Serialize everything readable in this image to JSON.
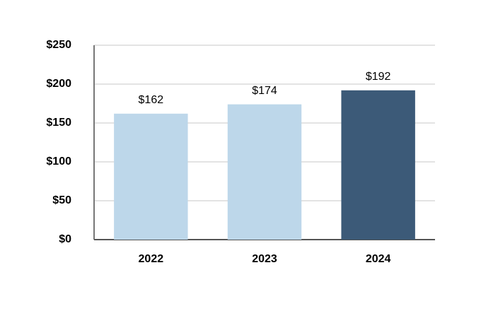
{
  "chart_data": {
    "type": "bar",
    "categories": [
      "2022",
      "2023",
      "2024"
    ],
    "values": [
      162,
      174,
      192
    ],
    "value_labels": [
      "$162",
      "$174",
      "$192"
    ],
    "colors": [
      "#bdd7ea",
      "#bdd7ea",
      "#3c5a78"
    ],
    "ylim": [
      0,
      250
    ],
    "yticks": [
      {
        "value": 0,
        "label": "$0"
      },
      {
        "value": 50,
        "label": "$50"
      },
      {
        "value": 100,
        "label": "$100"
      },
      {
        "value": 150,
        "label": "$150"
      },
      {
        "value": 200,
        "label": "$200"
      },
      {
        "value": 250,
        "label": "$250"
      }
    ],
    "grid": true
  }
}
